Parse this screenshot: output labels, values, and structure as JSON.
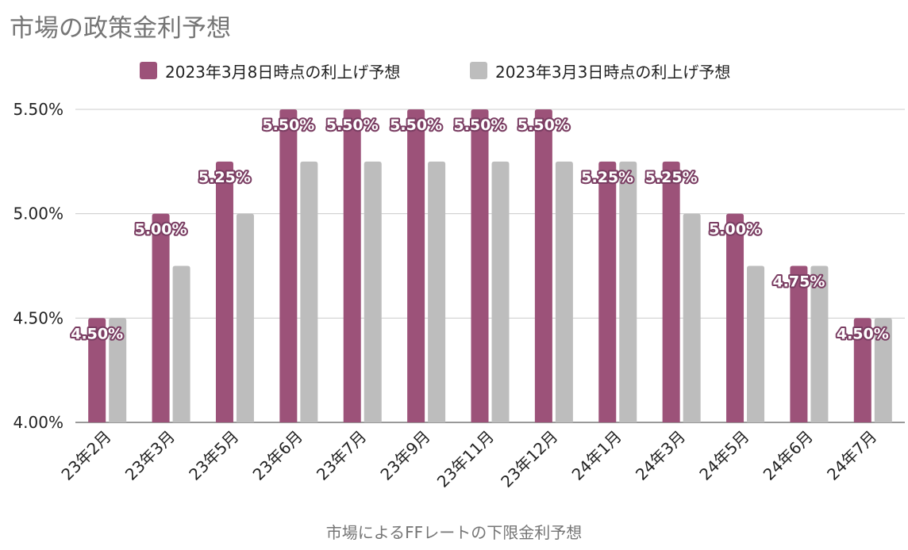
{
  "chart_data": {
    "type": "bar",
    "title": "市場の政策金利予想",
    "xlabel": "市場によるFFレートの下限金利予想",
    "ylabel": "",
    "ylim": [
      4.0,
      5.5
    ],
    "yticks": [
      "4.00%",
      "4.50%",
      "5.00%",
      "5.50%"
    ],
    "ytick_values": [
      4.0,
      4.5,
      5.0,
      5.5
    ],
    "grid": true,
    "legend_position": "top",
    "categories": [
      "23年2月",
      "23年3月",
      "23年5月",
      "23年6月",
      "23年7月",
      "23年9月",
      "23年11月",
      "23年12月",
      "24年1月",
      "24年3月",
      "24年5月",
      "24年6月",
      "24年7月"
    ],
    "series": [
      {
        "name": "2023年3月8日時点の利上げ予想",
        "color": "#9c5279",
        "values": [
          4.5,
          5.0,
          5.25,
          5.5,
          5.5,
          5.5,
          5.5,
          5.5,
          5.25,
          5.25,
          5.0,
          4.75,
          4.5
        ],
        "data_labels": [
          "4.50%",
          "5.00%",
          "5.25%",
          "5.50%",
          "5.50%",
          "5.50%",
          "5.50%",
          "5.50%",
          "5.25%",
          "5.25%",
          "5.00%",
          "4.75%",
          "4.50%"
        ]
      },
      {
        "name": "2023年3月3日時点の利上げ予想",
        "color": "#bdbdbd",
        "values": [
          4.5,
          4.75,
          5.0,
          5.25,
          5.25,
          5.25,
          5.25,
          5.25,
          5.25,
          5.0,
          4.75,
          4.75,
          4.5
        ]
      }
    ]
  }
}
